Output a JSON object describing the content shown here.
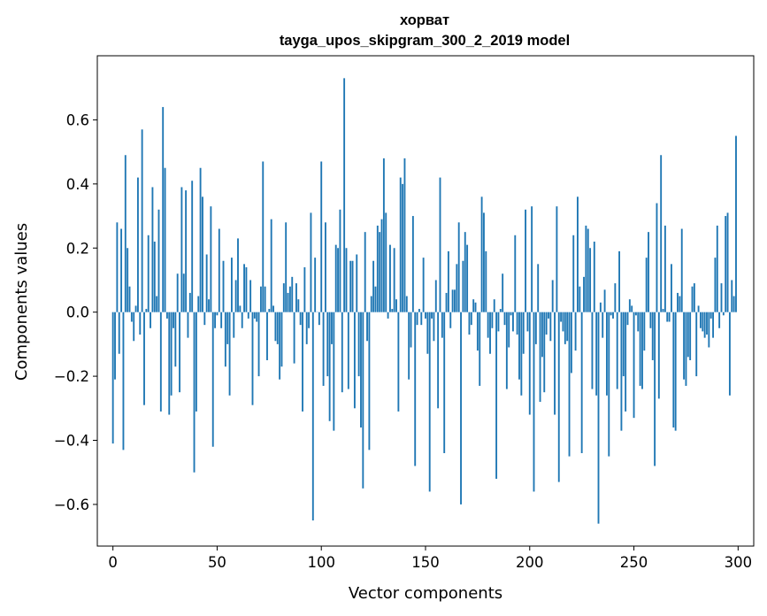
{
  "chart_data": {
    "type": "bar",
    "title": "хорват",
    "subtitle": "tayga_upos_skipgram_300_2_2019 model",
    "xlabel": "Vector components",
    "ylabel": "Components values",
    "xlim": [
      -7.5,
      307.5
    ],
    "ylim": [
      -0.73,
      0.8
    ],
    "xticks": [
      0,
      50,
      100,
      150,
      200,
      250,
      300
    ],
    "yticks": [
      -0.6,
      -0.4,
      -0.2,
      0.0,
      0.2,
      0.4,
      0.6
    ],
    "ytick_labels": [
      "−0.6",
      "−0.4",
      "−0.2",
      "0.0",
      "0.2",
      "0.4",
      "0.6"
    ],
    "bar_color": "#1f77b4",
    "grid": false,
    "values": [
      -0.41,
      -0.21,
      0.28,
      -0.13,
      0.26,
      -0.43,
      0.49,
      0.2,
      0.08,
      -0.03,
      -0.09,
      0.02,
      0.42,
      -0.07,
      0.57,
      -0.29,
      0.01,
      0.24,
      -0.05,
      0.39,
      0.22,
      0.05,
      0.32,
      -0.31,
      0.64,
      0.45,
      -0.02,
      -0.32,
      -0.26,
      -0.05,
      -0.17,
      0.12,
      -0.25,
      0.39,
      0.12,
      0.38,
      -0.08,
      0.06,
      0.41,
      -0.5,
      -0.31,
      0.05,
      0.45,
      0.36,
      -0.04,
      0.18,
      0.04,
      0.33,
      -0.42,
      -0.05,
      -0.01,
      0.26,
      -0.05,
      0.16,
      -0.17,
      -0.1,
      -0.26,
      0.17,
      -0.08,
      0.1,
      0.23,
      0.02,
      -0.05,
      0.15,
      0.14,
      -0.02,
      0.1,
      -0.29,
      -0.02,
      -0.03,
      -0.2,
      0.08,
      0.47,
      0.08,
      -0.15,
      0.01,
      0.29,
      0.02,
      -0.09,
      -0.1,
      -0.21,
      -0.17,
      0.09,
      0.28,
      0.06,
      0.08,
      0.11,
      -0.16,
      0.09,
      0.04,
      -0.04,
      -0.31,
      0.14,
      -0.1,
      -0.05,
      0.31,
      -0.65,
      0.17,
      0.0,
      -0.04,
      0.47,
      -0.23,
      0.28,
      -0.2,
      -0.34,
      -0.1,
      -0.37,
      0.21,
      0.2,
      0.32,
      -0.25,
      0.73,
      0.2,
      -0.24,
      0.16,
      0.16,
      -0.3,
      0.18,
      -0.2,
      -0.36,
      -0.55,
      0.25,
      -0.09,
      -0.43,
      0.05,
      0.16,
      0.08,
      0.27,
      0.25,
      0.29,
      0.48,
      0.31,
      -0.02,
      0.21,
      0.01,
      0.2,
      0.04,
      -0.31,
      0.42,
      0.4,
      0.48,
      0.05,
      -0.21,
      -0.11,
      0.3,
      -0.48,
      -0.04,
      0.01,
      -0.04,
      0.17,
      -0.02,
      -0.13,
      -0.56,
      -0.02,
      -0.09,
      0.1,
      -0.3,
      0.42,
      -0.08,
      -0.44,
      0.06,
      0.19,
      -0.05,
      0.07,
      0.07,
      0.15,
      0.28,
      -0.6,
      0.16,
      0.25,
      0.21,
      -0.07,
      -0.04,
      0.04,
      0.03,
      -0.12,
      -0.23,
      0.36,
      0.31,
      0.19,
      -0.08,
      -0.13,
      -0.05,
      0.04,
      -0.52,
      -0.06,
      0.01,
      0.12,
      -0.04,
      -0.24,
      -0.11,
      -0.01,
      -0.06,
      0.24,
      -0.07,
      -0.21,
      -0.26,
      -0.13,
      0.32,
      -0.06,
      -0.32,
      0.33,
      -0.56,
      -0.1,
      0.15,
      -0.28,
      -0.14,
      -0.25,
      -0.07,
      -0.02,
      -0.09,
      0.1,
      -0.32,
      0.33,
      -0.53,
      -0.03,
      -0.06,
      -0.1,
      -0.09,
      -0.45,
      -0.19,
      0.24,
      -0.12,
      0.36,
      0.08,
      -0.44,
      0.11,
      0.27,
      0.26,
      0.2,
      -0.24,
      0.22,
      -0.26,
      -0.66,
      0.03,
      -0.08,
      0.07,
      -0.26,
      -0.45,
      -0.01,
      -0.02,
      0.09,
      -0.24,
      0.19,
      -0.37,
      -0.2,
      -0.31,
      -0.04,
      0.04,
      0.02,
      -0.33,
      -0.01,
      -0.06,
      -0.23,
      -0.24,
      -0.12,
      0.17,
      0.25,
      -0.05,
      -0.15,
      -0.48,
      0.34,
      -0.27,
      0.49,
      0.01,
      0.27,
      -0.03,
      -0.03,
      0.15,
      -0.36,
      -0.37,
      0.06,
      0.05,
      0.26,
      -0.21,
      -0.23,
      -0.14,
      -0.15,
      0.08,
      0.09,
      -0.2,
      0.02,
      -0.05,
      -0.06,
      -0.08,
      -0.07,
      -0.11,
      -0.02,
      -0.08,
      0.17,
      0.27,
      -0.05,
      0.09,
      -0.01,
      0.3,
      0.31,
      -0.26,
      0.1,
      0.05,
      0.55
    ]
  }
}
